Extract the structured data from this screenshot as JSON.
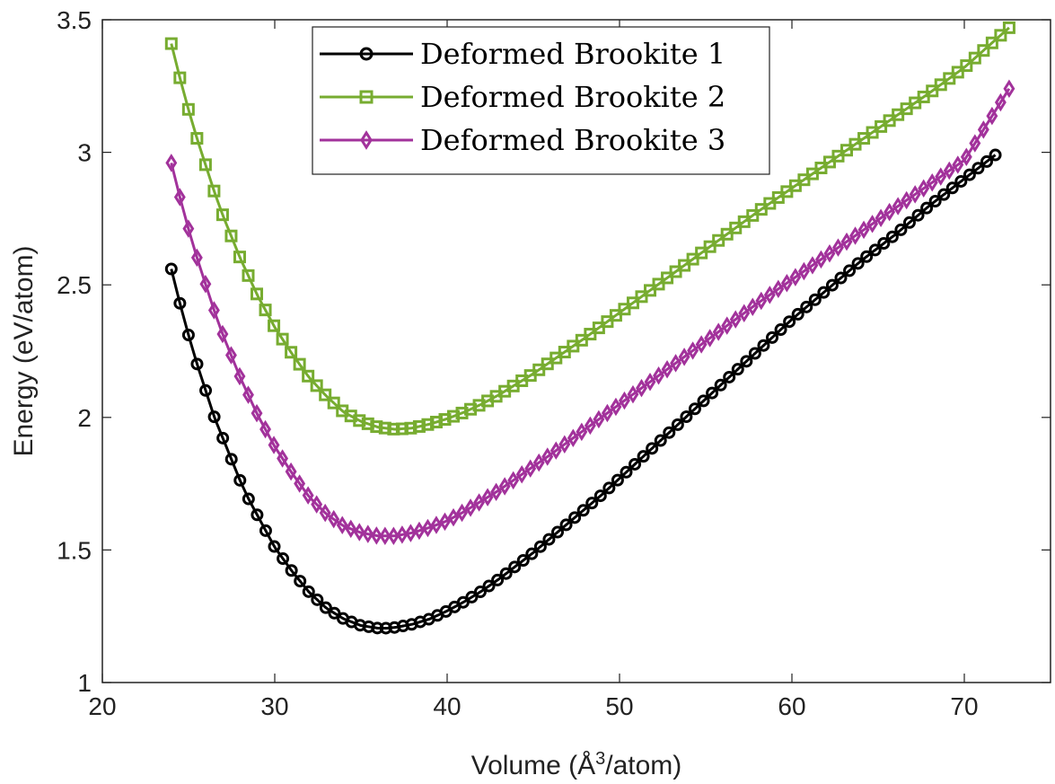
{
  "chart_data": {
    "type": "line",
    "xlabel": {
      "main": "Volume (Å",
      "sup": "3",
      "tail": "/atom)"
    },
    "ylabel": "Energy (eV/atom)",
    "xlim": [
      20,
      75
    ],
    "ylim": [
      1,
      3.5
    ],
    "xticks": [
      "20",
      "30",
      "40",
      "50",
      "60",
      "70"
    ],
    "yticks": [
      "1",
      "1.5",
      "2",
      "2.5",
      "3",
      "3.5"
    ],
    "grid": false,
    "legend_position": "top-center",
    "series": [
      {
        "name": "Deformed Brookite 1",
        "color": "#000000",
        "marker": "circle",
        "x_range": [
          24.0,
          71.8
        ],
        "points": [
          [
            24.0,
            2.56
          ],
          [
            24.5,
            2.43
          ],
          [
            25.0,
            2.31
          ],
          [
            25.5,
            2.2
          ],
          [
            26.0,
            2.1
          ],
          [
            26.5,
            2.0
          ],
          [
            27.0,
            1.92
          ],
          [
            27.5,
            1.84
          ],
          [
            28.0,
            1.76
          ],
          [
            28.5,
            1.69
          ],
          [
            29.0,
            1.63
          ],
          [
            29.5,
            1.57
          ],
          [
            30.0,
            1.51
          ],
          [
            31.0,
            1.42
          ],
          [
            32.0,
            1.34
          ],
          [
            33.0,
            1.28
          ],
          [
            34.0,
            1.24
          ],
          [
            35.0,
            1.215
          ],
          [
            35.5,
            1.21
          ],
          [
            36.0,
            1.205
          ],
          [
            36.5,
            1.205
          ],
          [
            37.0,
            1.208
          ],
          [
            38.0,
            1.22
          ],
          [
            39.0,
            1.24
          ],
          [
            40.0,
            1.27
          ],
          [
            41.0,
            1.305
          ],
          [
            42.0,
            1.345
          ],
          [
            43.0,
            1.39
          ],
          [
            44.0,
            1.44
          ],
          [
            45.0,
            1.49
          ],
          [
            46.0,
            1.545
          ],
          [
            47.0,
            1.6
          ],
          [
            48.0,
            1.655
          ],
          [
            49.0,
            1.71
          ],
          [
            50.0,
            1.77
          ],
          [
            52.0,
            1.89
          ],
          [
            54.0,
            2.01
          ],
          [
            56.0,
            2.13
          ],
          [
            58.0,
            2.25
          ],
          [
            60.0,
            2.37
          ],
          [
            62.0,
            2.48
          ],
          [
            64.0,
            2.59
          ],
          [
            66.0,
            2.69
          ],
          [
            68.0,
            2.8
          ],
          [
            70.0,
            2.9
          ],
          [
            71.8,
            2.99
          ]
        ],
        "n_markers": 97
      },
      {
        "name": "Deformed Brookite 2",
        "color": "#77AC30",
        "marker": "square",
        "x_range": [
          24.0,
          72.6
        ],
        "points": [
          [
            24.0,
            3.41
          ],
          [
            24.5,
            3.28
          ],
          [
            25.0,
            3.16
          ],
          [
            25.5,
            3.05
          ],
          [
            26.0,
            2.95
          ],
          [
            26.5,
            2.85
          ],
          [
            27.0,
            2.76
          ],
          [
            27.5,
            2.68
          ],
          [
            28.0,
            2.6
          ],
          [
            28.5,
            2.53
          ],
          [
            29.0,
            2.46
          ],
          [
            29.5,
            2.4
          ],
          [
            30.0,
            2.34
          ],
          [
            31.0,
            2.24
          ],
          [
            32.0,
            2.15
          ],
          [
            33.0,
            2.08
          ],
          [
            34.0,
            2.02
          ],
          [
            35.0,
            1.985
          ],
          [
            36.0,
            1.963
          ],
          [
            37.0,
            1.955
          ],
          [
            38.0,
            1.96
          ],
          [
            39.0,
            1.975
          ],
          [
            40.0,
            1.995
          ],
          [
            41.0,
            2.02
          ],
          [
            42.0,
            2.05
          ],
          [
            43.0,
            2.085
          ],
          [
            44.0,
            2.125
          ],
          [
            45.0,
            2.165
          ],
          [
            46.0,
            2.21
          ],
          [
            47.0,
            2.255
          ],
          [
            48.0,
            2.3
          ],
          [
            50.0,
            2.395
          ],
          [
            52.0,
            2.49
          ],
          [
            54.0,
            2.585
          ],
          [
            56.0,
            2.68
          ],
          [
            58.0,
            2.775
          ],
          [
            60.0,
            2.865
          ],
          [
            62.0,
            2.955
          ],
          [
            64.0,
            3.045
          ],
          [
            66.0,
            3.135
          ],
          [
            68.0,
            3.225
          ],
          [
            70.0,
            3.32
          ],
          [
            72.6,
            3.47
          ]
        ],
        "n_markers": 99
      },
      {
        "name": "Deformed Brookite 3",
        "color": "#A2329B",
        "marker": "diamond",
        "x_range": [
          24.0,
          72.6
        ],
        "points": [
          [
            24.0,
            2.96
          ],
          [
            24.5,
            2.83
          ],
          [
            25.0,
            2.71
          ],
          [
            25.5,
            2.6
          ],
          [
            26.0,
            2.5
          ],
          [
            26.5,
            2.4
          ],
          [
            27.0,
            2.31
          ],
          [
            27.5,
            2.23
          ],
          [
            28.0,
            2.15
          ],
          [
            28.5,
            2.08
          ],
          [
            29.0,
            2.01
          ],
          [
            29.5,
            1.95
          ],
          [
            30.0,
            1.89
          ],
          [
            31.0,
            1.79
          ],
          [
            32.0,
            1.7
          ],
          [
            33.0,
            1.635
          ],
          [
            34.0,
            1.59
          ],
          [
            35.0,
            1.565
          ],
          [
            36.0,
            1.553
          ],
          [
            37.0,
            1.553
          ],
          [
            38.0,
            1.565
          ],
          [
            39.0,
            1.585
          ],
          [
            40.0,
            1.61
          ],
          [
            41.0,
            1.645
          ],
          [
            42.0,
            1.685
          ],
          [
            43.0,
            1.725
          ],
          [
            44.0,
            1.77
          ],
          [
            45.0,
            1.815
          ],
          [
            46.0,
            1.86
          ],
          [
            48.0,
            1.955
          ],
          [
            50.0,
            2.05
          ],
          [
            52.0,
            2.145
          ],
          [
            54.0,
            2.24
          ],
          [
            56.0,
            2.335
          ],
          [
            58.0,
            2.43
          ],
          [
            60.0,
            2.52
          ],
          [
            62.0,
            2.61
          ],
          [
            64.0,
            2.7
          ],
          [
            66.0,
            2.79
          ],
          [
            68.0,
            2.88
          ],
          [
            70.0,
            2.97
          ],
          [
            72.6,
            3.24
          ]
        ],
        "n_markers": 99
      }
    ]
  }
}
